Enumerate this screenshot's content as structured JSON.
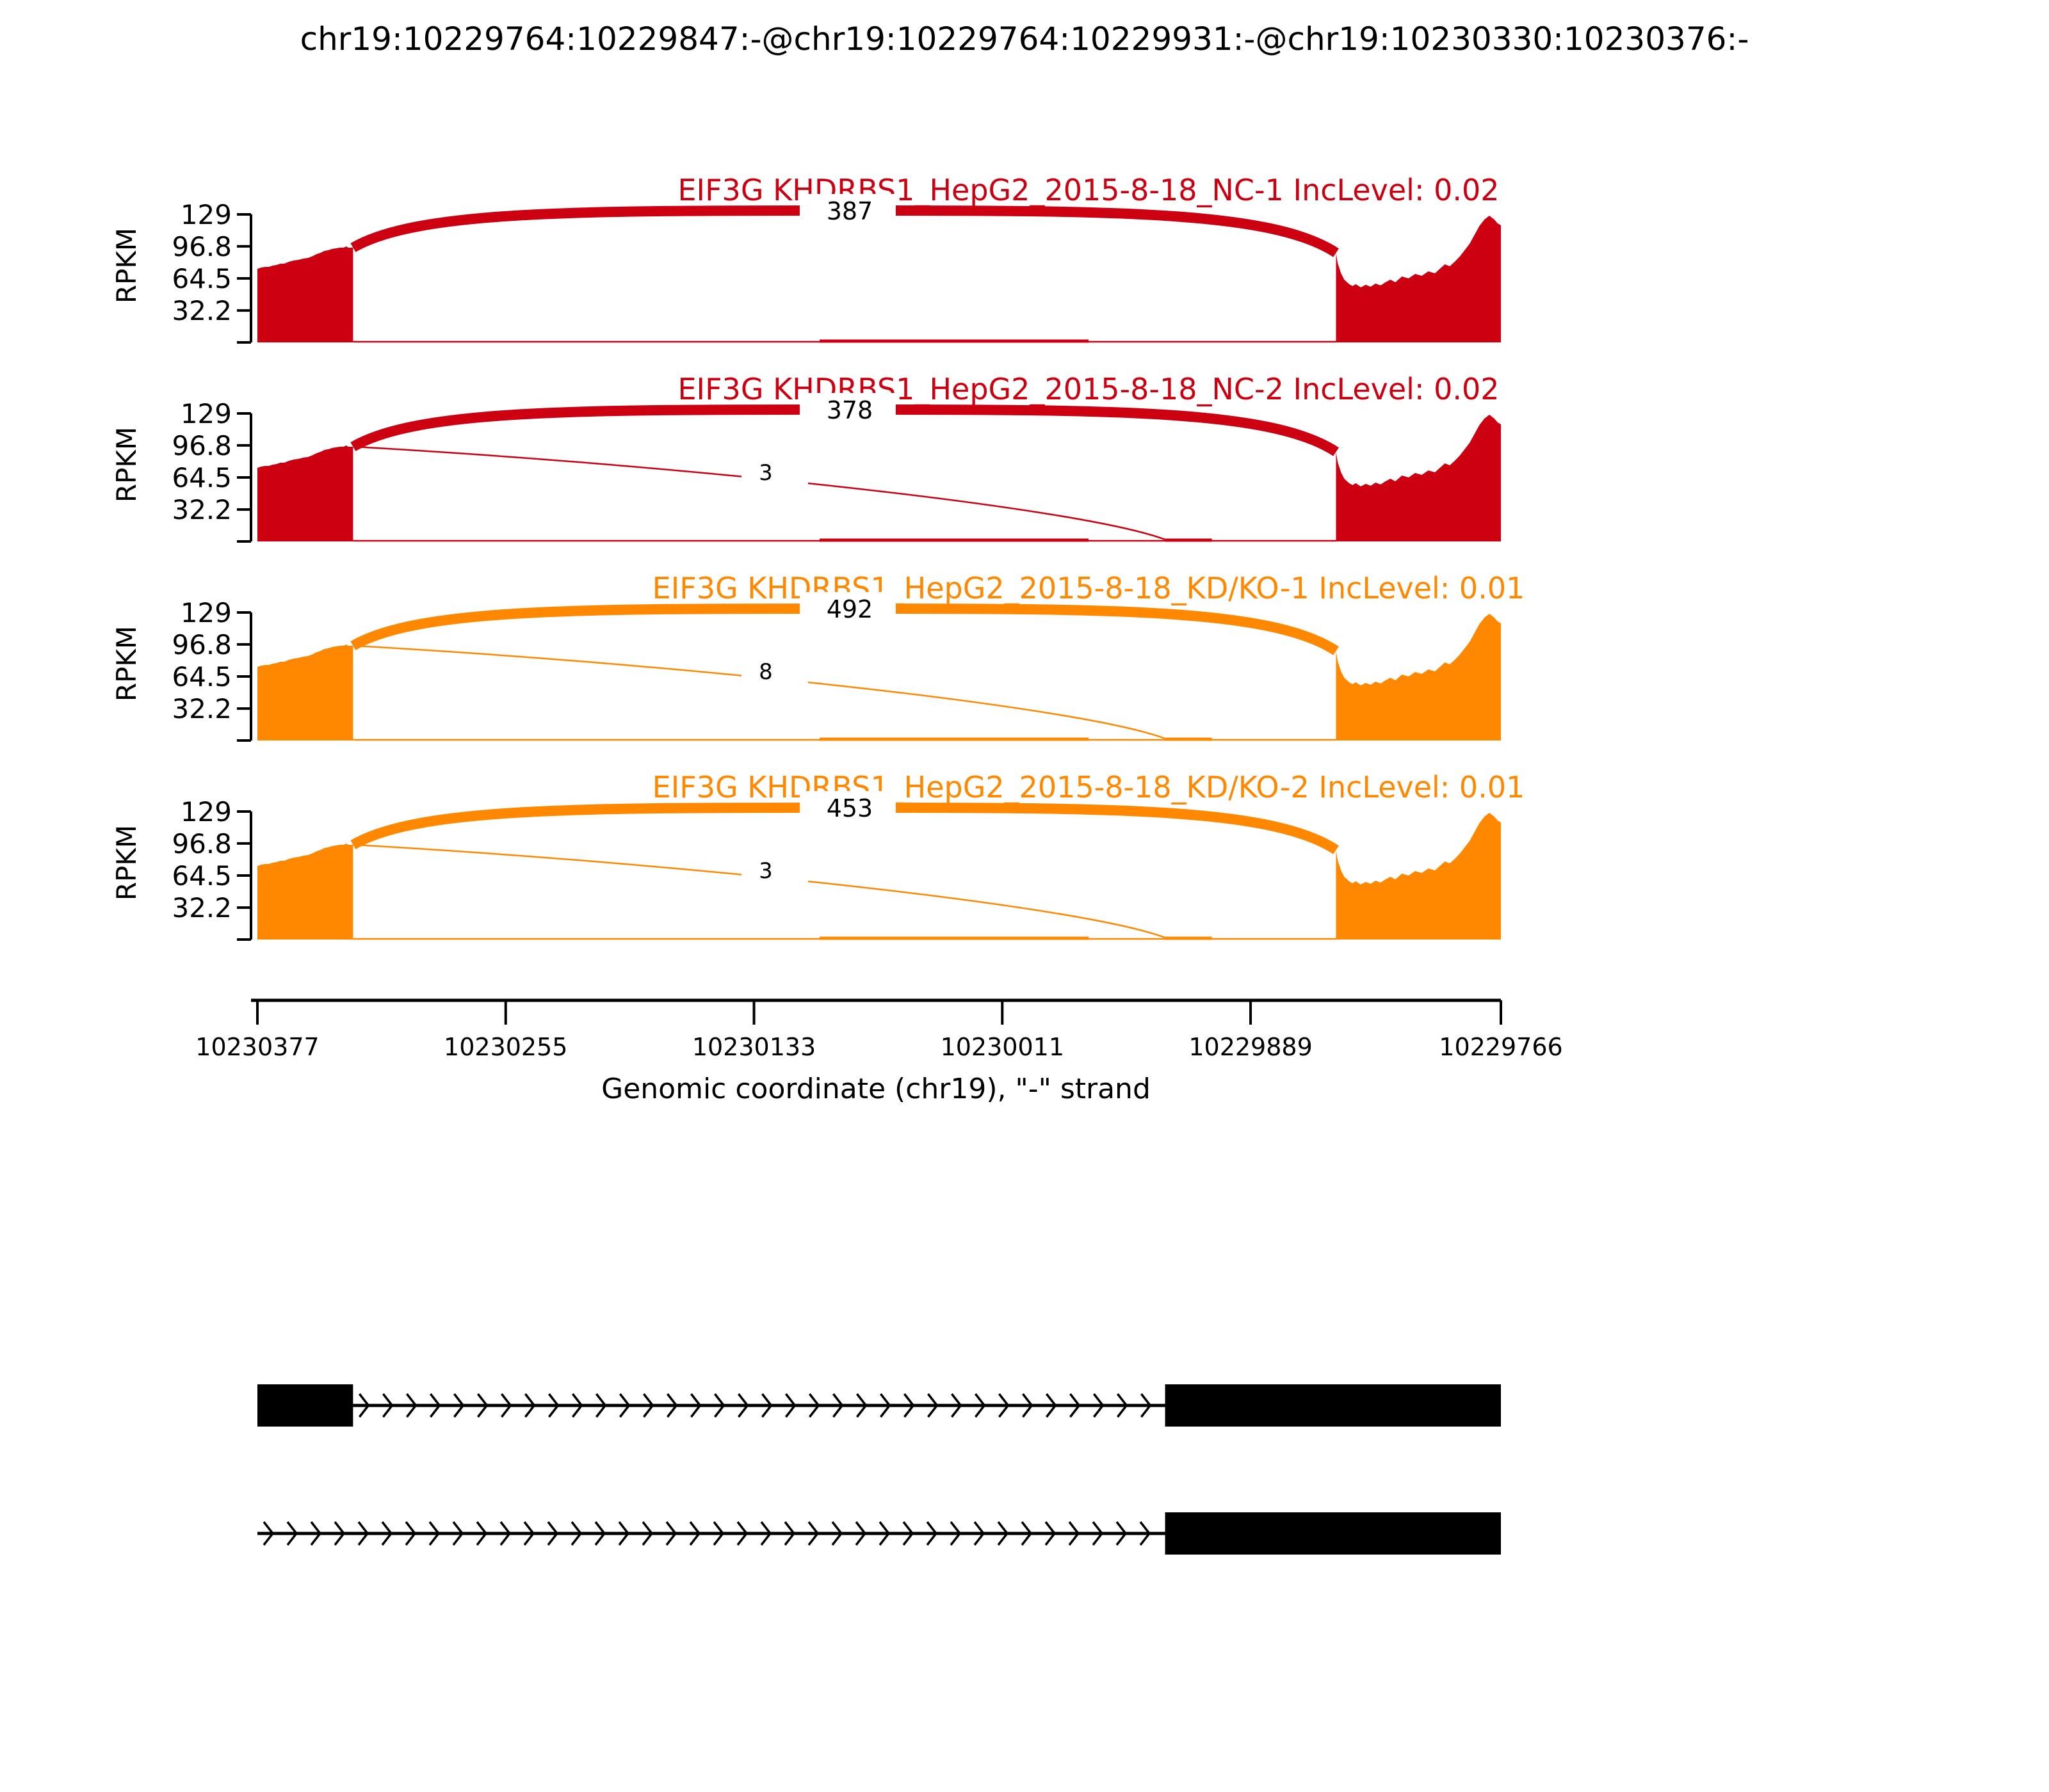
{
  "chart_data": {
    "type": "area",
    "chart_kind": "sashimi-plot",
    "title": "chr19:10229764:10229847:-@chr19:10229764:10229931:-@chr19:10230330:10230376:-",
    "xlabel": "Genomic coordinate (chr19), \"-\" strand",
    "ylabel": "RPKM",
    "x_axis": {
      "tick_labels": [
        "10230377",
        "10230255",
        "10230133",
        "10230011",
        "10229889",
        "10229766"
      ],
      "tick_bp": [
        10230377,
        10230255,
        10230133,
        10230011,
        10229889,
        10229766
      ],
      "bp_max": 10230377,
      "bp_min": 10229766,
      "reversed": true
    },
    "y_axis": {
      "tick_labels": [
        "129",
        "96.8",
        "64.5",
        "32.2"
      ],
      "tick_values": [
        129,
        96.8,
        64.5,
        32.2
      ],
      "ylim": [
        0,
        129
      ]
    },
    "colors": {
      "sample_group_1": "#CC0011",
      "sample_group_2": "#FF8800",
      "gene_model": "#000000",
      "text": "#000000"
    },
    "tracks": [
      {
        "label": "EIF3G KHDRBS1_HepG2_2015-8-18_NC-1 IncLevel: 0.02",
        "color": "#CC0011",
        "inc_level": "0.02",
        "junctions": [
          {
            "count": "387",
            "from_bp": 10230330,
            "to_bp": 10229847,
            "style": "thick"
          }
        ]
      },
      {
        "label": "EIF3G KHDRBS1_HepG2_2015-8-18_NC-2 IncLevel: 0.02",
        "color": "#CC0011",
        "inc_level": "0.02",
        "junctions": [
          {
            "count": "378",
            "from_bp": 10230330,
            "to_bp": 10229847,
            "style": "thick"
          },
          {
            "count": "3",
            "from_bp": 10230330,
            "to_bp": 10229931,
            "style": "thin"
          }
        ]
      },
      {
        "label": "EIF3G KHDRBS1_HepG2_2015-8-18_KD/KO-1 IncLevel: 0.01",
        "color": "#FF8800",
        "inc_level": "0.01",
        "junctions": [
          {
            "count": "492",
            "from_bp": 10230330,
            "to_bp": 10229847,
            "style": "thick"
          },
          {
            "count": "8",
            "from_bp": 10230330,
            "to_bp": 10229931,
            "style": "thin"
          }
        ]
      },
      {
        "label": "EIF3G KHDRBS1_HepG2_2015-8-18_KD/KO-2 IncLevel: 0.01",
        "color": "#FF8800",
        "inc_level": "0.01",
        "junctions": [
          {
            "count": "453",
            "from_bp": 10230330,
            "to_bp": 10229931,
            "style": "thick"
          },
          {
            "count": "3",
            "from_bp": 10230330,
            "to_bp": 10229931,
            "style": "thin"
          }
        ]
      }
    ],
    "coverage_regions_bp": {
      "upstream_exon": [
        10230377,
        10230330
      ],
      "downstream_exon": [
        10229847,
        10229766
      ]
    },
    "coverage_profile_frac": {
      "upstream_exon": [
        [
          0,
          0.575
        ],
        [
          0.04,
          0.585
        ],
        [
          0.08,
          0.59
        ],
        [
          0.12,
          0.59
        ],
        [
          0.16,
          0.6
        ],
        [
          0.2,
          0.605
        ],
        [
          0.24,
          0.615
        ],
        [
          0.28,
          0.615
        ],
        [
          0.33,
          0.63
        ],
        [
          0.38,
          0.64
        ],
        [
          0.43,
          0.645
        ],
        [
          0.48,
          0.655
        ],
        [
          0.53,
          0.66
        ],
        [
          0.58,
          0.675
        ],
        [
          0.62,
          0.69
        ],
        [
          0.66,
          0.7
        ],
        [
          0.7,
          0.715
        ],
        [
          0.74,
          0.72
        ],
        [
          0.78,
          0.73
        ],
        [
          0.82,
          0.735
        ],
        [
          0.86,
          0.74
        ],
        [
          0.9,
          0.74
        ],
        [
          0.93,
          0.75
        ],
        [
          0.95,
          0.74
        ],
        [
          1,
          0.74
        ]
      ],
      "downstream_exon": [
        [
          0,
          0.7
        ],
        [
          0.01,
          0.62
        ],
        [
          0.03,
          0.54
        ],
        [
          0.05,
          0.49
        ],
        [
          0.08,
          0.455
        ],
        [
          0.1,
          0.44
        ],
        [
          0.12,
          0.455
        ],
        [
          0.15,
          0.43
        ],
        [
          0.18,
          0.45
        ],
        [
          0.21,
          0.435
        ],
        [
          0.24,
          0.46
        ],
        [
          0.27,
          0.445
        ],
        [
          0.3,
          0.47
        ],
        [
          0.33,
          0.49
        ],
        [
          0.36,
          0.47
        ],
        [
          0.4,
          0.515
        ],
        [
          0.44,
          0.5
        ],
        [
          0.48,
          0.535
        ],
        [
          0.52,
          0.52
        ],
        [
          0.56,
          0.555
        ],
        [
          0.6,
          0.54
        ],
        [
          0.63,
          0.575
        ],
        [
          0.66,
          0.61
        ],
        [
          0.69,
          0.595
        ],
        [
          0.72,
          0.63
        ],
        [
          0.75,
          0.67
        ],
        [
          0.78,
          0.72
        ],
        [
          0.81,
          0.77
        ],
        [
          0.84,
          0.84
        ],
        [
          0.87,
          0.91
        ],
        [
          0.9,
          0.96
        ],
        [
          0.93,
          0.99
        ],
        [
          0.96,
          0.96
        ],
        [
          0.98,
          0.93
        ],
        [
          1,
          0.915
        ]
      ]
    },
    "gene_models": [
      {
        "exons_bp": [
          [
            10230377,
            10230330
          ],
          [
            10229931,
            10229766
          ]
        ],
        "intron_bp": [
          10230330,
          10229931
        ]
      },
      {
        "exons_bp": [
          [
            10229931,
            10229766
          ]
        ],
        "intron_bp": [
          10230377,
          10229931
        ]
      }
    ]
  }
}
